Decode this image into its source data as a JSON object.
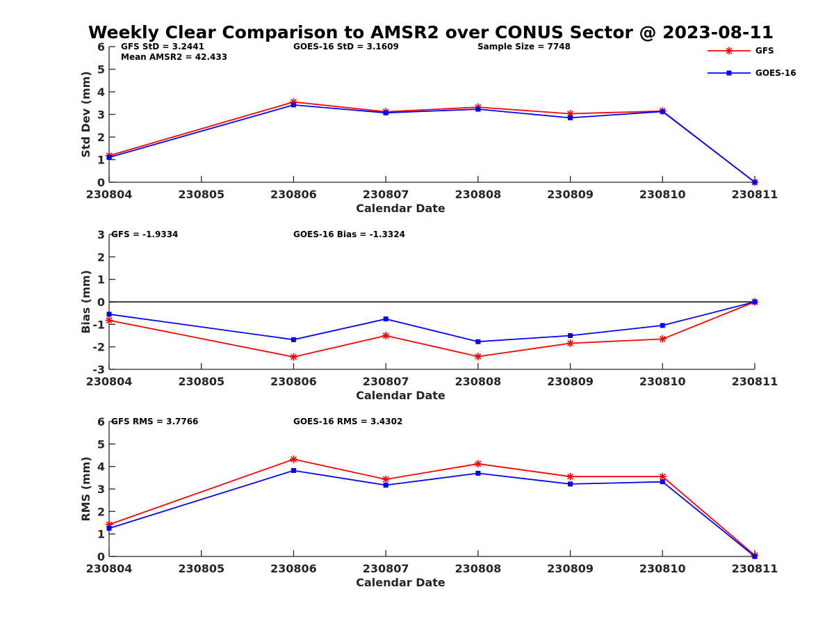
{
  "title": "Weekly Clear Comparison to AMSR2 over CONUS Sector @ 2023-08-11",
  "legend": [
    {
      "name": "GFS",
      "color": "#ff0000",
      "marker": "asterisk"
    },
    {
      "name": "GOES-16",
      "color": "#0000ff",
      "marker": "square"
    }
  ],
  "chart_data": [
    {
      "type": "line",
      "x": [
        "230804",
        "230805",
        "230806",
        "230807",
        "230808",
        "230809",
        "230810",
        "230811"
      ],
      "xlabel": "Calendar Date",
      "ylabel": "Std Dev (mm)",
      "ylim": [
        0,
        6
      ],
      "yticks": [
        0,
        1,
        2,
        3,
        4,
        5,
        6
      ],
      "zero_line": false,
      "annotations": [
        "GFS StD = 3.2441",
        "Mean AMSR2 = 42.433",
        "GOES-16 StD = 3.1609",
        "Sample Size = 7748"
      ],
      "series": [
        {
          "name": "GFS",
          "color": "#ff0000",
          "points": [
            [
              0,
              1.18
            ],
            [
              2,
              3.55
            ],
            [
              3,
              3.12
            ],
            [
              4,
              3.32
            ],
            [
              5,
              3.03
            ],
            [
              6,
              3.15
            ],
            [
              7,
              0.0
            ]
          ]
        },
        {
          "name": "GOES-16",
          "color": "#0000ff",
          "points": [
            [
              0,
              1.1
            ],
            [
              2,
              3.42
            ],
            [
              3,
              3.07
            ],
            [
              4,
              3.23
            ],
            [
              5,
              2.85
            ],
            [
              6,
              3.13
            ],
            [
              7,
              0.0
            ]
          ]
        }
      ]
    },
    {
      "type": "line",
      "x": [
        "230804",
        "230805",
        "230806",
        "230807",
        "230808",
        "230809",
        "230810",
        "230811"
      ],
      "xlabel": "Calendar Date",
      "ylabel": "Bias (mm)",
      "ylim": [
        -3,
        3
      ],
      "yticks": [
        -3,
        -2,
        -1,
        0,
        1,
        2,
        3
      ],
      "zero_line": true,
      "annotations": [
        "GFS = -1.9334",
        "GOES-16 Bias  = -1.3324"
      ],
      "series": [
        {
          "name": "GFS",
          "color": "#ff0000",
          "points": [
            [
              0,
              -0.82
            ],
            [
              2,
              -2.45
            ],
            [
              3,
              -1.5
            ],
            [
              4,
              -2.43
            ],
            [
              5,
              -1.84
            ],
            [
              6,
              -1.65
            ],
            [
              7,
              0.0
            ]
          ]
        },
        {
          "name": "GOES-16",
          "color": "#0000ff",
          "points": [
            [
              0,
              -0.55
            ],
            [
              2,
              -1.68
            ],
            [
              3,
              -0.76
            ],
            [
              4,
              -1.77
            ],
            [
              5,
              -1.5
            ],
            [
              6,
              -1.05
            ],
            [
              7,
              0.0
            ]
          ]
        }
      ]
    },
    {
      "type": "line",
      "x": [
        "230804",
        "230805",
        "230806",
        "230807",
        "230808",
        "230809",
        "230810",
        "230811"
      ],
      "xlabel": "Calendar Date",
      "ylabel": "RMS (mm)",
      "ylim": [
        0,
        6
      ],
      "yticks": [
        0,
        1,
        2,
        3,
        4,
        5,
        6
      ],
      "zero_line": false,
      "annotations": [
        "GFS RMS = 3.7766",
        "GOES-16 RMS = 3.4302"
      ],
      "series": [
        {
          "name": "GFS",
          "color": "#ff0000",
          "points": [
            [
              0,
              1.42
            ],
            [
              2,
              4.32
            ],
            [
              3,
              3.43
            ],
            [
              4,
              4.12
            ],
            [
              5,
              3.55
            ],
            [
              6,
              3.55
            ],
            [
              7,
              0.05
            ]
          ]
        },
        {
          "name": "GOES-16",
          "color": "#0000ff",
          "points": [
            [
              0,
              1.25
            ],
            [
              2,
              3.82
            ],
            [
              3,
              3.17
            ],
            [
              4,
              3.7
            ],
            [
              5,
              3.22
            ],
            [
              6,
              3.32
            ],
            [
              7,
              0.0
            ]
          ]
        }
      ]
    }
  ]
}
